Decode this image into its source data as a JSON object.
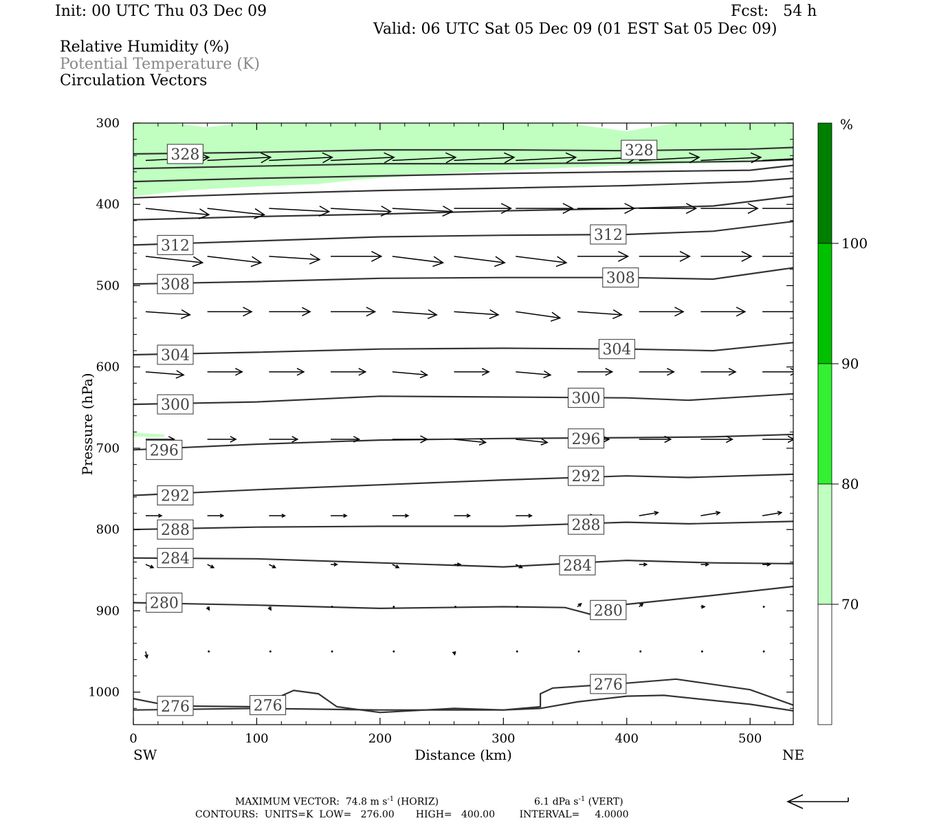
{
  "header": {
    "init": "Init: 00 UTC Thu 03 Dec 09",
    "fcst": "Fcst:   54 h",
    "valid": "Valid: 06 UTC Sat 05 Dec 09 (01 EST Sat 05 Dec 09)"
  },
  "legend": {
    "rh": "Relative Humidity (%)",
    "theta": "Potential Temperature (K)",
    "vectors": "Circulation Vectors"
  },
  "footer": {
    "max_vector": "MAXIMUM VECTOR:  74.8 m s",
    "max_vector_horiz_exp": "-1",
    "max_vector_horiz_tail": " (HORIZ)",
    "vert_value": "6.1 dPa s",
    "vert_exp": "-1",
    "vert_tail": " (VERT)",
    "contours": "CONTOURS:  UNITS=K  LOW=   276.00       HIGH=   400.00        INTERVAL=     4.0000"
  },
  "colors": {
    "rh_70_80": "#c0ffc0",
    "rh_80_90": "#33f033",
    "rh_90_100": "#00c000",
    "rh_100_plus": "#008000",
    "contour": "#333333",
    "label_text": "#444444",
    "theta_legend": "#888888"
  },
  "chart_data": {
    "type": "cross-section",
    "xlabel": "Distance (km)",
    "ylabel": "Pressure (hPa)",
    "xlim": [
      0,
      535
    ],
    "ylim": [
      1040,
      300
    ],
    "x_ticks": [
      "0",
      "100",
      "200",
      "300",
      "400",
      "500"
    ],
    "x_tick_values": [
      0,
      100,
      200,
      300,
      400,
      500
    ],
    "y_ticks": [
      "300",
      "400",
      "500",
      "600",
      "700",
      "800",
      "900",
      "1000"
    ],
    "y_tick_values": [
      300,
      400,
      500,
      600,
      700,
      800,
      900,
      1000
    ],
    "left_end_label": "SW",
    "right_end_label": "NE",
    "colorbar": {
      "unit": "%",
      "labels": [
        "100",
        "90",
        "80",
        "70"
      ],
      "label_values": [
        100,
        90,
        80,
        70
      ],
      "colors": [
        "#008000",
        "#00c000",
        "#33f033",
        "#c0ffc0",
        "#ffffff"
      ]
    },
    "rh_shading": [
      {
        "range": "70-80",
        "top": [
          [
            0,
            300
          ],
          [
            30,
            300
          ],
          [
            60,
            305
          ],
          [
            90,
            300
          ],
          [
            150,
            300
          ],
          [
            200,
            300
          ],
          [
            300,
            300
          ],
          [
            350,
            300
          ],
          [
            400,
            310
          ],
          [
            440,
            300
          ],
          [
            535,
            300
          ]
        ],
        "bottom": [
          [
            0,
            390
          ],
          [
            50,
            382
          ],
          [
            100,
            378
          ],
          [
            150,
            375
          ],
          [
            180,
            370
          ],
          [
            250,
            362
          ],
          [
            350,
            355
          ],
          [
            400,
            352
          ],
          [
            450,
            350
          ],
          [
            500,
            348
          ],
          [
            535,
            345
          ]
        ]
      },
      {
        "range": "70-80",
        "top": [
          [
            0,
            681
          ],
          [
            25,
            683
          ]
        ],
        "bottom": [
          [
            0,
            686
          ],
          [
            25,
            686
          ]
        ]
      }
    ],
    "theta_contours": [
      {
        "label": "328",
        "points": [
          [
            0,
            338
          ],
          [
            100,
            336
          ],
          [
            200,
            333
          ],
          [
            300,
            333
          ],
          [
            400,
            334
          ],
          [
            500,
            332
          ],
          [
            535,
            330
          ]
        ]
      },
      {
        "label": "",
        "points": [
          [
            0,
            356
          ],
          [
            100,
            353
          ],
          [
            200,
            350
          ],
          [
            300,
            350
          ],
          [
            400,
            349
          ],
          [
            500,
            347
          ],
          [
            535,
            345
          ]
        ]
      },
      {
        "label": "",
        "points": [
          [
            0,
            372
          ],
          [
            100,
            368
          ],
          [
            200,
            365
          ],
          [
            300,
            362
          ],
          [
            400,
            360
          ],
          [
            500,
            358
          ],
          [
            535,
            352
          ]
        ]
      },
      {
        "label": "",
        "points": [
          [
            0,
            392
          ],
          [
            100,
            387
          ],
          [
            200,
            383
          ],
          [
            300,
            380
          ],
          [
            400,
            377
          ],
          [
            500,
            372
          ],
          [
            535,
            368
          ]
        ]
      },
      {
        "label": "",
        "points": [
          [
            0,
            419
          ],
          [
            100,
            415
          ],
          [
            200,
            412
          ],
          [
            300,
            408
          ],
          [
            400,
            405
          ],
          [
            470,
            402
          ],
          [
            535,
            390
          ]
        ]
      },
      {
        "label": "312",
        "points": [
          [
            0,
            450
          ],
          [
            100,
            445
          ],
          [
            200,
            440
          ],
          [
            300,
            438
          ],
          [
            400,
            437
          ],
          [
            470,
            433
          ],
          [
            535,
            421
          ]
        ]
      },
      {
        "label": "308",
        "points": [
          [
            0,
            498
          ],
          [
            100,
            495
          ],
          [
            200,
            491
          ],
          [
            300,
            490
          ],
          [
            400,
            490
          ],
          [
            470,
            492
          ],
          [
            535,
            478
          ]
        ]
      },
      {
        "label": "304",
        "points": [
          [
            0,
            585
          ],
          [
            100,
            582
          ],
          [
            200,
            578
          ],
          [
            300,
            577
          ],
          [
            400,
            578
          ],
          [
            470,
            580
          ],
          [
            535,
            570
          ]
        ]
      },
      {
        "label": "300",
        "points": [
          [
            0,
            646
          ],
          [
            100,
            643
          ],
          [
            200,
            636
          ],
          [
            300,
            637
          ],
          [
            400,
            638
          ],
          [
            450,
            641
          ],
          [
            535,
            633
          ]
        ]
      },
      {
        "label": "296",
        "points": [
          [
            0,
            702
          ],
          [
            100,
            695
          ],
          [
            200,
            690
          ],
          [
            300,
            688
          ],
          [
            400,
            687
          ],
          [
            470,
            686
          ],
          [
            535,
            683
          ]
        ]
      },
      {
        "label": "292",
        "points": [
          [
            0,
            758
          ],
          [
            100,
            751
          ],
          [
            200,
            745
          ],
          [
            300,
            739
          ],
          [
            400,
            734
          ],
          [
            450,
            736
          ],
          [
            535,
            732
          ]
        ]
      },
      {
        "label": "288",
        "points": [
          [
            0,
            800
          ],
          [
            100,
            797
          ],
          [
            200,
            796
          ],
          [
            300,
            796
          ],
          [
            400,
            791
          ],
          [
            450,
            793
          ],
          [
            535,
            790
          ]
        ]
      },
      {
        "label": "284",
        "points": [
          [
            0,
            835
          ],
          [
            100,
            836
          ],
          [
            200,
            841
          ],
          [
            300,
            846
          ],
          [
            400,
            838
          ],
          [
            470,
            841
          ],
          [
            535,
            842
          ]
        ]
      },
      {
        "label": "280",
        "points": [
          [
            0,
            890
          ],
          [
            100,
            893
          ],
          [
            200,
            897
          ],
          [
            300,
            895
          ],
          [
            350,
            896
          ],
          [
            370,
            904
          ],
          [
            400,
            892
          ],
          [
            470,
            881
          ],
          [
            535,
            870
          ]
        ]
      },
      {
        "label": "276",
        "points": [
          [
            0,
            1008
          ],
          [
            30,
            1017
          ],
          [
            100,
            1018
          ],
          [
            130,
            998
          ],
          [
            150,
            1002
          ],
          [
            165,
            1018
          ],
          [
            200,
            1025
          ],
          [
            260,
            1020
          ],
          [
            300,
            1022
          ],
          [
            330,
            1020
          ],
          [
            360,
            1012
          ],
          [
            400,
            1005
          ],
          [
            430,
            1004
          ],
          [
            500,
            1015
          ],
          [
            535,
            1023
          ]
        ]
      },
      {
        "label": "",
        "points": [
          [
            0,
            1022
          ],
          [
            100,
            1020
          ],
          [
            200,
            1022
          ],
          [
            300,
            1022
          ],
          [
            330,
            1018
          ],
          [
            330,
            1002
          ],
          [
            340,
            995
          ],
          [
            400,
            989
          ],
          [
            440,
            984
          ],
          [
            500,
            997
          ],
          [
            535,
            1016
          ]
        ]
      }
    ],
    "vectors": {
      "x": [
        10,
        60,
        110,
        160,
        210,
        260,
        310,
        360,
        410,
        460,
        510
      ],
      "rows": [
        {
          "p": 346,
          "u": [
            1.0,
            1.0,
            1.0,
            1.0,
            1.0,
            0.95,
            0.95,
            0.95,
            0.95,
            0.95,
            0.95
          ],
          "w": [
            -0.005,
            -0.005,
            -0.005,
            -0.005,
            -0.005,
            -0.005,
            -0.005,
            -0.005,
            -0.005,
            -0.005,
            -0.005
          ]
        },
        {
          "p": 405,
          "u": [
            1.0,
            0.9,
            0.95,
            0.95,
            0.95,
            0.9,
            0.9,
            0.9,
            0.9,
            0.9,
            0.9
          ],
          "w": [
            0.01,
            0.01,
            0.005,
            0.005,
            0.005,
            0.0,
            0.0,
            0.0,
            0.0,
            0.0,
            0.0
          ]
        },
        {
          "p": 464,
          "u": [
            0.9,
            0.85,
            0.8,
            0.8,
            0.8,
            0.8,
            0.8,
            0.8,
            0.8,
            0.8,
            0.8
          ],
          "w": [
            0.01,
            0.01,
            0.005,
            0.0,
            0.01,
            0.01,
            0.01,
            0.0,
            0.0,
            0.0,
            0.0
          ]
        },
        {
          "p": 532,
          "u": [
            0.7,
            0.7,
            0.65,
            0.7,
            0.7,
            0.7,
            0.7,
            0.7,
            0.7,
            0.7,
            0.7
          ],
          "w": [
            0.005,
            0.0,
            0.0,
            0.0,
            0.005,
            0.005,
            0.01,
            0.005,
            0.0,
            0.0,
            0.0
          ]
        },
        {
          "p": 606,
          "u": [
            0.6,
            0.55,
            0.55,
            0.55,
            0.55,
            0.55,
            0.55,
            0.55,
            0.55,
            0.55,
            0.55
          ],
          "w": [
            0.005,
            0.0,
            0.0,
            0.0,
            0.005,
            0.0,
            0.005,
            0.0,
            0.0,
            0.0,
            0.0
          ]
        },
        {
          "p": 689,
          "u": [
            0.45,
            0.45,
            0.45,
            0.45,
            0.55,
            0.5,
            0.5,
            0.5,
            0.5,
            0.5,
            0.5
          ],
          "w": [
            0.0,
            0.0,
            0.0,
            0.0,
            0.0,
            0.005,
            0.005,
            0.0,
            0.0,
            0.0,
            0.0
          ]
        },
        {
          "p": 783,
          "u": [
            0.25,
            0.25,
            0.25,
            0.25,
            0.25,
            0.25,
            0.25,
            0.25,
            0.3,
            0.3,
            0.3
          ],
          "w": [
            0.0,
            0.0,
            0.0,
            0.0,
            0.0,
            0.0,
            0.0,
            0.0,
            -0.005,
            -0.005,
            -0.005
          ]
        },
        {
          "p": 843,
          "u": [
            0.12,
            0.1,
            0.1,
            0.1,
            0.1,
            0.1,
            0.1,
            0.1,
            0.12,
            0.12,
            0.12
          ],
          "w": [
            0.005,
            0.005,
            0.005,
            0.0,
            0.005,
            0.0,
            0.005,
            0.0,
            0.0,
            0.0,
            0.0
          ]
        },
        {
          "p": 895,
          "u": [
            0.05,
            0.03,
            0.03,
            0.03,
            0.03,
            0.03,
            0.03,
            0.06,
            0.06,
            0.06,
            0.04
          ],
          "w": [
            0.005,
            0.005,
            0.005,
            0.0,
            0.0,
            0.0,
            0.0,
            -0.005,
            -0.005,
            0.0,
            0.0
          ]
        },
        {
          "p": 950,
          "u": [
            0.02,
            0.01,
            0.01,
            0.01,
            0.01,
            0.01,
            0.01,
            0.01,
            0.02,
            0.02,
            0.02
          ],
          "w": [
            0.01,
            0.0,
            0.0,
            0.0,
            0.0,
            0.005,
            0.0,
            0.0,
            0.0,
            0.0,
            0.0
          ]
        }
      ]
    }
  }
}
